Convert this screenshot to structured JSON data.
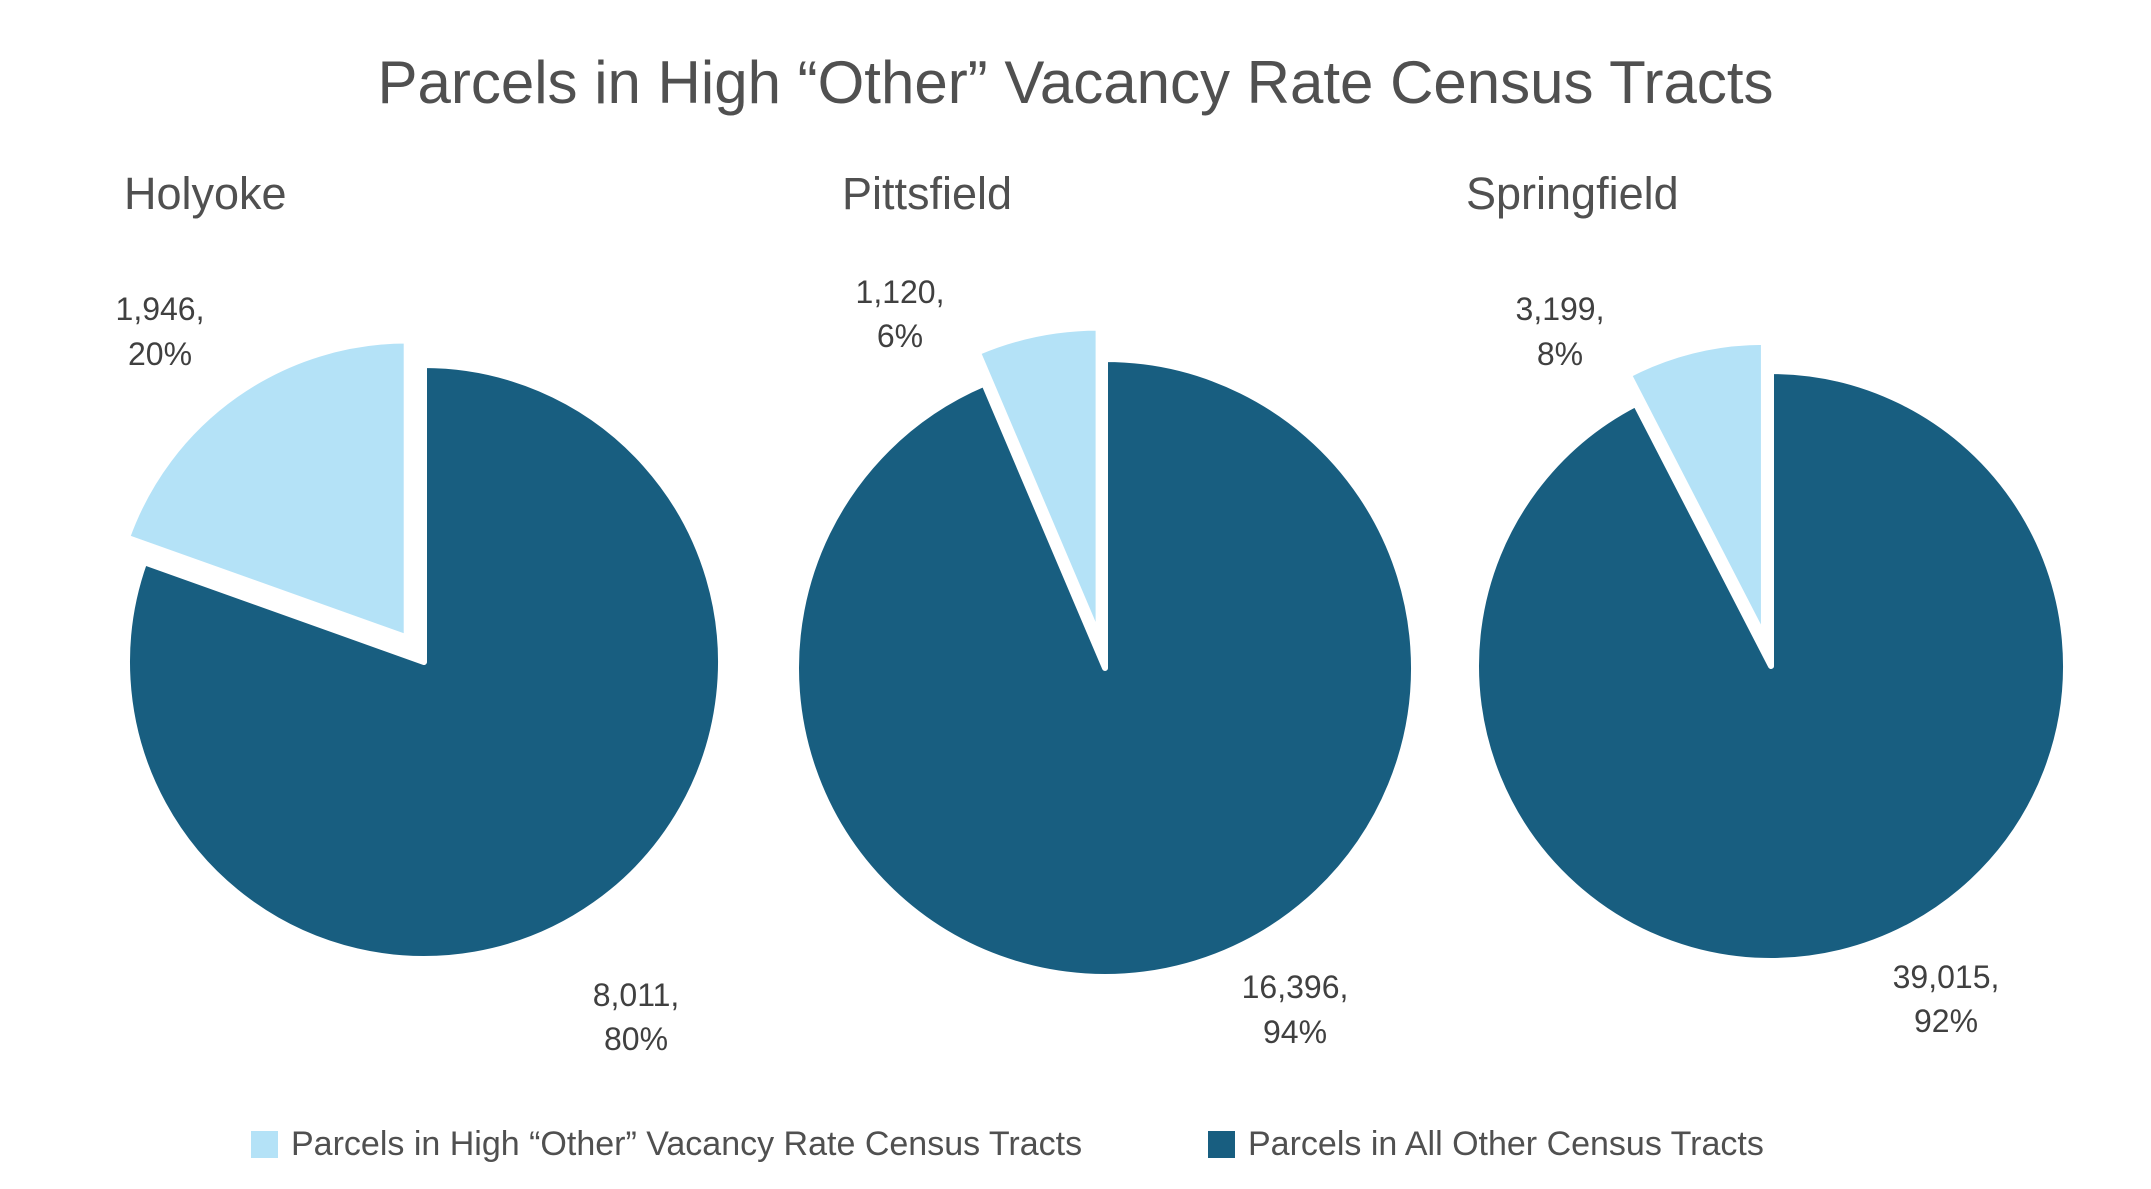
{
  "chart_data": {
    "type": "pie",
    "title": "Parcels in High “Other” Vacancy Rate Census Tracts",
    "legend": [
      "Parcels in High “Other” Vacancy Rate Census Tracts",
      "Parcels in All Other Census Tracts"
    ],
    "legend_position": "bottom",
    "colors": {
      "high_other": "#b4e2f7",
      "all_other": "#185e80"
    },
    "charts": [
      {
        "name": "Holyoke",
        "slices": [
          {
            "label": "Parcels in High “Other” Vacancy Rate Census Tracts",
            "value": 1946,
            "percent": 20,
            "value_text": "1,946,",
            "percent_text": "20%"
          },
          {
            "label": "Parcels in All Other Census Tracts",
            "value": 8011,
            "percent": 80,
            "value_text": "8,011,",
            "percent_text": "80%"
          }
        ]
      },
      {
        "name": "Pittsfield",
        "slices": [
          {
            "label": "Parcels in High “Other” Vacancy Rate Census Tracts",
            "value": 1120,
            "percent": 6,
            "value_text": "1,120,",
            "percent_text": "6%"
          },
          {
            "label": "Parcels in All Other Census Tracts",
            "value": 16396,
            "percent": 94,
            "value_text": "16,396,",
            "percent_text": "94%"
          }
        ]
      },
      {
        "name": "Springfield",
        "slices": [
          {
            "label": "Parcels in High “Other” Vacancy Rate Census Tracts",
            "value": 3199,
            "percent": 8,
            "value_text": "3,199,",
            "percent_text": "8%"
          },
          {
            "label": "Parcels in All Other Census Tracts",
            "value": 39015,
            "percent": 92,
            "value_text": "39,015,",
            "percent_text": "92%"
          }
        ]
      }
    ]
  }
}
